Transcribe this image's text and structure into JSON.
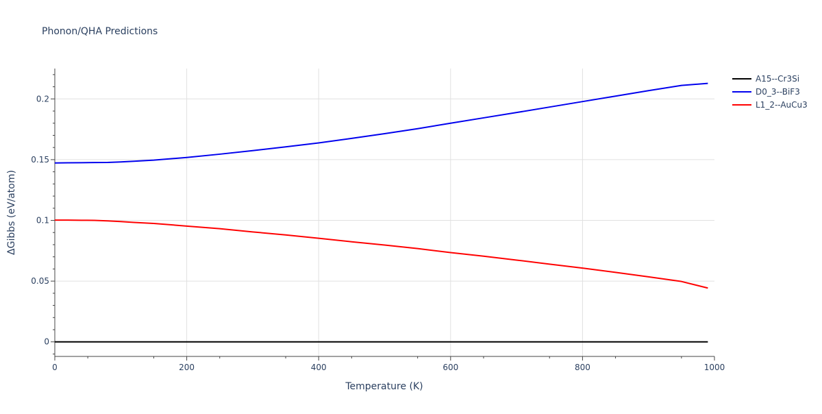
{
  "chart_data": {
    "type": "line",
    "title": "Phonon/QHA Predictions",
    "xlabel": "Temperature (K)",
    "ylabel": "ΔGibbs (eV/atom)",
    "xlim": [
      0,
      1000
    ],
    "ylim": [
      -0.012,
      0.225
    ],
    "x_ticks": [
      0,
      200,
      400,
      600,
      800,
      1000
    ],
    "x_tick_labels": [
      "0",
      "200",
      "400",
      "600",
      "800",
      "1000"
    ],
    "y_ticks": [
      0,
      0.05,
      0.1,
      0.15,
      0.2
    ],
    "y_tick_labels": [
      "0",
      "0.05",
      "0.1",
      "0.15",
      "0.2"
    ],
    "grid": true,
    "legend_position": "top-right, outside plot",
    "series": [
      {
        "name": "A15--Cr3Si",
        "color": "#000000",
        "x": [
          0,
          990
        ],
        "y": [
          0,
          0
        ]
      },
      {
        "name": "D0_3--BiF3",
        "color": "#0000ee",
        "x": [
          0,
          20,
          40,
          60,
          80,
          100,
          120,
          150,
          200,
          250,
          300,
          350,
          400,
          450,
          500,
          550,
          600,
          650,
          700,
          750,
          800,
          850,
          900,
          950,
          990
        ],
        "y": [
          0.1473,
          0.1474,
          0.1475,
          0.1476,
          0.1477,
          0.1481,
          0.1487,
          0.1496,
          0.1518,
          0.1545,
          0.1574,
          0.1605,
          0.1638,
          0.1675,
          0.1714,
          0.1755,
          0.18,
          0.1844,
          0.1888,
          0.1933,
          0.1978,
          0.2023,
          0.2068,
          0.2111,
          0.2128
        ]
      },
      {
        "name": "L1_2--AuCu3",
        "color": "#ff0000",
        "x": [
          0,
          20,
          40,
          60,
          80,
          100,
          120,
          150,
          200,
          250,
          300,
          350,
          400,
          450,
          500,
          550,
          600,
          650,
          700,
          750,
          800,
          850,
          900,
          950,
          990
        ],
        "y": [
          0.1002,
          0.1002,
          0.1001,
          0.1,
          0.0996,
          0.099,
          0.0983,
          0.0975,
          0.0953,
          0.0932,
          0.0905,
          0.088,
          0.0853,
          0.0824,
          0.0797,
          0.0768,
          0.0735,
          0.0705,
          0.0673,
          0.064,
          0.0607,
          0.0572,
          0.0535,
          0.0497,
          0.0443
        ]
      }
    ]
  }
}
